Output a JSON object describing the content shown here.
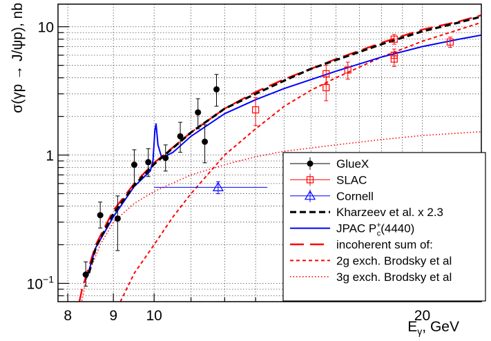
{
  "chart_data": {
    "type": "scatter",
    "title": "",
    "xlabel": "E",
    "xlabel_sub": "γ",
    "xlabel_unit": ", GeV",
    "ylabel": "σ(γp → J/ψp), nb",
    "xscale": "log",
    "yscale": "log",
    "xlim": [
      7.8,
      23.3
    ],
    "ylim": [
      0.072,
      15
    ],
    "grid": true,
    "legend_position": "bottom-right",
    "x_tick_labels": [
      {
        "value": 8,
        "text": "8"
      },
      {
        "value": 9,
        "text": "9"
      },
      {
        "value": 10,
        "text": "10"
      },
      {
        "value": 20,
        "text": "20"
      }
    ],
    "y_tick_labels": [
      {
        "value": 0.1,
        "base": "10",
        "exp": "−1"
      },
      {
        "value": 1,
        "base": "1",
        "exp": ""
      },
      {
        "value": 10,
        "base": "10",
        "exp": ""
      }
    ],
    "series": [
      {
        "name": "GlueX",
        "kind": "points",
        "marker": "filled-circle",
        "color": "#000000",
        "points": [
          {
            "x": 8.38,
            "y": 0.117,
            "yerr": [
              0.022,
              0.03
            ],
            "xerr": 0.07
          },
          {
            "x": 8.7,
            "y": 0.34,
            "yerr": [
              0.07,
              0.09
            ],
            "xerr": 0.07
          },
          {
            "x": 9.1,
            "y": 0.32,
            "yerr": [
              0.14,
              0.16
            ],
            "xerr": 0.07
          },
          {
            "x": 9.5,
            "y": 0.84,
            "yerr": [
              0.26,
              0.26
            ],
            "xerr": 0.07
          },
          {
            "x": 9.85,
            "y": 0.88,
            "yerr": [
              0.2,
              0.24
            ],
            "xerr": 0.07
          },
          {
            "x": 10.3,
            "y": 0.95,
            "yerr": [
              0.2,
              0.25
            ],
            "xerr": 0.07
          },
          {
            "x": 10.7,
            "y": 1.4,
            "yerr": [
              0.35,
              0.4
            ],
            "xerr": 0.07
          },
          {
            "x": 11.2,
            "y": 2.15,
            "yerr": [
              0.55,
              0.6
            ],
            "xerr": 0.07
          },
          {
            "x": 11.4,
            "y": 1.27,
            "yerr": [
              0.4,
              0.45
            ],
            "xerr": 0.07
          },
          {
            "x": 11.75,
            "y": 3.25,
            "yerr": [
              0.85,
              1.0
            ],
            "xerr": 0.07
          }
        ]
      },
      {
        "name": "SLAC",
        "kind": "points",
        "marker": "open-square",
        "color": "#ff0000",
        "points": [
          {
            "x": 13.0,
            "y": 2.25,
            "yerr": [
              0.55,
              0.55
            ]
          },
          {
            "x": 15.6,
            "y": 3.35,
            "yerr": [
              0.7,
              0.7
            ]
          },
          {
            "x": 15.6,
            "y": 4.3,
            "yerr": [
              0.7,
              0.7
            ]
          },
          {
            "x": 16.5,
            "y": 4.6,
            "yerr": [
              0.7,
              0.7
            ]
          },
          {
            "x": 18.6,
            "y": 5.6,
            "yerr": [
              0.7,
              0.7
            ]
          },
          {
            "x": 18.6,
            "y": 6.0,
            "yerr": [
              0.7,
              0.7
            ]
          },
          {
            "x": 18.6,
            "y": 8.0,
            "yerr": [
              0.7,
              0.7
            ]
          },
          {
            "x": 21.5,
            "y": 7.6,
            "yerr": [
              0.7,
              0.7
            ]
          }
        ]
      },
      {
        "name": "Cornell",
        "kind": "points",
        "marker": "open-triangle",
        "color": "#0000ff",
        "points": [
          {
            "x": 11.8,
            "y": 0.56,
            "yerr": [
              0.06,
              0.06
            ],
            "xerr_lo": 1.8,
            "xerr_hi": 1.6
          }
        ]
      },
      {
        "name": "Kharzeev et al. x 2.3",
        "kind": "line",
        "style": "dashed-thick",
        "color": "#000000",
        "points": [
          [
            8.45,
            0.12
          ],
          [
            8.6,
            0.19
          ],
          [
            9.0,
            0.35
          ],
          [
            9.5,
            0.58
          ],
          [
            10.0,
            0.85
          ],
          [
            11.0,
            1.5
          ],
          [
            12.0,
            2.3
          ],
          [
            13.0,
            3.0
          ],
          [
            14.0,
            3.8
          ],
          [
            15.0,
            4.7
          ],
          [
            16.0,
            5.5
          ],
          [
            18.0,
            7.3
          ],
          [
            20.0,
            9.2
          ],
          [
            22.0,
            10.8
          ],
          [
            23.3,
            12.0
          ]
        ]
      },
      {
        "name": "JPAC P",
        "name_sup": "+",
        "name_sub": "c",
        "name_suffix": "(4440)",
        "kind": "line",
        "style": "solid",
        "color": "#0000ff",
        "points": [
          [
            8.4,
            0.11
          ],
          [
            8.6,
            0.19
          ],
          [
            9.0,
            0.33
          ],
          [
            9.5,
            0.57
          ],
          [
            9.9,
            0.75
          ],
          [
            9.97,
            0.9
          ],
          [
            10.02,
            1.55
          ],
          [
            10.05,
            1.75
          ],
          [
            10.1,
            1.2
          ],
          [
            10.2,
            0.95
          ],
          [
            10.5,
            1.05
          ],
          [
            11.0,
            1.4
          ],
          [
            12.0,
            2.1
          ],
          [
            13.0,
            2.7
          ],
          [
            14.0,
            3.3
          ],
          [
            16.0,
            4.5
          ],
          [
            18.0,
            5.8
          ],
          [
            20.0,
            7.0
          ],
          [
            22.0,
            8.0
          ],
          [
            23.3,
            8.6
          ]
        ]
      },
      {
        "name": "incoherent sum of:",
        "kind": "line",
        "style": "long-dashed",
        "color": "#ff0000",
        "points": [
          [
            8.15,
            0.05
          ],
          [
            8.3,
            0.09
          ],
          [
            8.6,
            0.2
          ],
          [
            9.0,
            0.37
          ],
          [
            9.5,
            0.6
          ],
          [
            10.0,
            0.87
          ],
          [
            11.0,
            1.5
          ],
          [
            12.0,
            2.3
          ],
          [
            13.0,
            3.1
          ],
          [
            14.0,
            3.9
          ],
          [
            16.0,
            5.6
          ],
          [
            18.0,
            7.5
          ],
          [
            20.0,
            9.5
          ],
          [
            22.0,
            11.0
          ],
          [
            23.3,
            12.3
          ]
        ]
      },
      {
        "name": "2g exch. Brodsky et al",
        "kind": "line",
        "style": "dashed",
        "color": "#ff0000",
        "points": [
          [
            9.1,
            0.065
          ],
          [
            9.5,
            0.12
          ],
          [
            10.0,
            0.2
          ],
          [
            10.5,
            0.33
          ],
          [
            11.0,
            0.5
          ],
          [
            12.0,
            1.0
          ],
          [
            13.0,
            1.6
          ],
          [
            14.0,
            2.4
          ],
          [
            15.0,
            3.2
          ],
          [
            16.0,
            4.0
          ],
          [
            18.0,
            5.8
          ],
          [
            20.0,
            7.7
          ],
          [
            22.0,
            9.5
          ],
          [
            23.3,
            10.8
          ]
        ]
      },
      {
        "name": "3g exch. Brodsky et al",
        "kind": "line",
        "style": "dotted",
        "color": "#ff0000",
        "points": [
          [
            8.2,
            0.05
          ],
          [
            8.4,
            0.11
          ],
          [
            8.7,
            0.2
          ],
          [
            9.0,
            0.3
          ],
          [
            9.5,
            0.42
          ],
          [
            10.0,
            0.52
          ],
          [
            11.0,
            0.7
          ],
          [
            12.0,
            0.84
          ],
          [
            13.0,
            0.97
          ],
          [
            14.0,
            1.07
          ],
          [
            16.0,
            1.2
          ],
          [
            18.0,
            1.32
          ],
          [
            20.0,
            1.42
          ],
          [
            23.3,
            1.52
          ]
        ]
      }
    ]
  }
}
